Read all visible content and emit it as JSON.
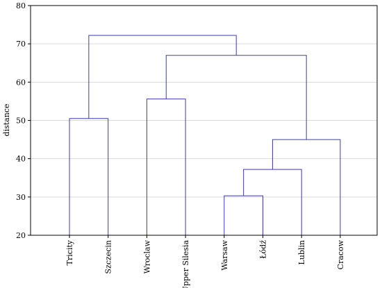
{
  "chart_data": {
    "type": "dendrogram",
    "title": "",
    "ylabel": "distance",
    "xlabel": "",
    "ylim": [
      20,
      80
    ],
    "yticks": [
      20,
      30,
      40,
      50,
      60,
      70,
      80
    ],
    "grid": true,
    "leaves": [
      "Tricity",
      "Szczecin",
      "Wroclaw",
      "Upper Silesia",
      "Warsaw",
      "Łódź",
      "Lublin",
      "Cracow"
    ],
    "merges": [
      {
        "left": "Warsaw",
        "right": "Łódź",
        "height": 30.3
      },
      {
        "left": "Warsaw+Łódź",
        "right": "Lublin",
        "height": 37.2
      },
      {
        "left": "Warsaw+Łódź+Lublin",
        "right": "Cracow",
        "height": 45.0
      },
      {
        "left": "Tricity",
        "right": "Szczecin",
        "height": 50.5
      },
      {
        "left": "Wroclaw",
        "right": "Upper Silesia",
        "height": 55.6
      },
      {
        "left": "Wroclaw+Upper Silesia",
        "right": "Warsaw+Łódź+Lublin+Cracow",
        "height": 67.0
      },
      {
        "left": "Tricity+Szczecin",
        "right": "Wroclaw+Upper Silesia+Warsaw+Łódź+Lublin+Cracow",
        "height": 72.2
      }
    ],
    "colors": {
      "link": "#3a3ab4",
      "grid": "#d9d9d9",
      "axis": "#000000"
    }
  }
}
